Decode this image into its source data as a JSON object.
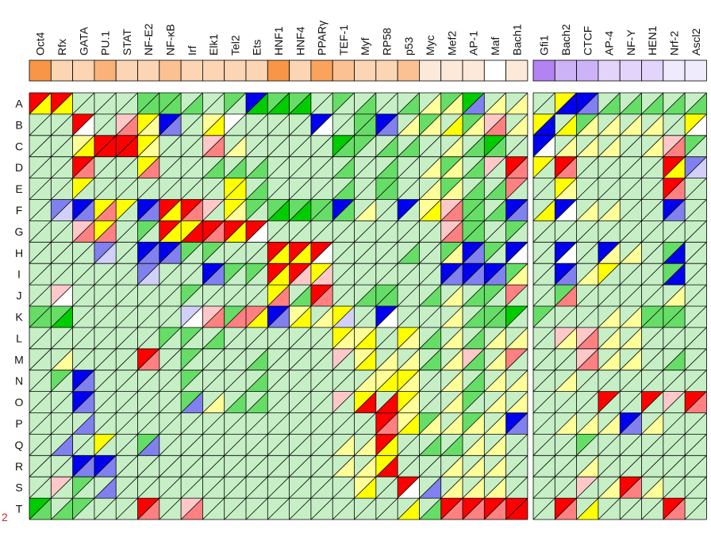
{
  "chart_data": {
    "type": "heatmap",
    "title": "",
    "xlabel": "",
    "ylabel": "",
    "panels": [
      {
        "columns": [
          "Oct4",
          "Rfx",
          "GATA",
          "PU.1",
          "STAT",
          "NF-E2",
          "NF-κB",
          "Irf",
          "Elk1",
          "Tel2",
          "Ets",
          "HNF1",
          "HNF4",
          "PPARγ",
          "TEF-1",
          "Myf",
          "RP58",
          "p53",
          "Myc",
          "Mef2",
          "AP-1",
          "Maf",
          "Bach1"
        ],
        "header_colors": [
          "#f79646",
          "#fcd5b4",
          "#fcd5b4",
          "#fab27a",
          "#fcd5b4",
          "#fcd5b4",
          "#fbc193",
          "#fcd5b4",
          "#fcd5b4",
          "#fcd5b4",
          "#fcd5b4",
          "#f79646",
          "#fcd5b4",
          "#f9a35c",
          "#fbc193",
          "#fcd5b4",
          "#fcd5b4",
          "#fbc193",
          "#fde9d9",
          "#fde9d9",
          "#fde9d9",
          "#ffffff",
          "#fde9d9"
        ]
      },
      {
        "columns": [
          "Gfi1",
          "Bach2",
          "CTCF",
          "AP-4",
          "NF-Y",
          "HEN1",
          "Nrf-2",
          "Ascl2"
        ],
        "header_colors": [
          "#b383f2",
          "#ccb3f7",
          "#ccb3f7",
          "#e2d4fb",
          "#e2d4fb",
          "#e2d4fb",
          "#f0eafd",
          "#f0eafd"
        ]
      }
    ],
    "rows": [
      "A",
      "B",
      "C",
      "D",
      "E",
      "F",
      "G",
      "H",
      "I",
      "J",
      "K",
      "L",
      "M",
      "N",
      "O",
      "P",
      "Q",
      "R",
      "S",
      "T"
    ],
    "stray_label": "2",
    "cell_encoding": "Each cell is split diagonally into an upper-left and lower-right triangle; each triangle takes a category color code.",
    "color_codes": {
      "w": "#ffffff",
      "r": "#ff0000",
      "o": "#ff8080",
      "p": "#ffc8c8",
      "y": "#ffff00",
      "l": "#ffff99",
      "g": "#00cc00",
      "m": "#66dd66",
      "n": "#c6efc6",
      "b": "#0000ee",
      "s": "#8080ee",
      "t": "#d0d0f8"
    },
    "cells": [
      [
        "ry ry nn nn nn mm mm nm nn mn bg mg mg nn mn nm nn nm nl ml gs nl nl",
        "nn yb bs nm nm nm nm nm"
      ],
      [
        "nn nn rw nn po yl bs nn ly wn nn nn nn bw nn mm bs nl ml ny ml po nl",
        "yb ny ml nl nl nl nn yw"
      ],
      [
        "nn nn ly rr rr yl nn nn po nl nn nn nn nn gm mn nm nm nn nl nm gm nn",
        "bw nl nl nl nn nl po mn"
      ],
      [
        "nn nn ro nn nn yo nn nn nm nm nm nn nn nn nm nn nm nn nl ml nm pn ro",
        "yn ro nn nn nn nn ry st"
      ],
      [
        "nn nn yn nn nn nn nn nn nn yy nm nn nn nn nm nn mm nn nl ml nm nm on",
        "nn yl nn nn nn nn ro nn"
      ],
      [
        "nn st bs yo yn bs ry ro pn yl mn mg mg mm bm nl nn bn ly po mm nm bs",
        "ny bw nl nl nn nn bs nn"
      ],
      [
        "nn nn po yo nn mn ry yr ro ry rw nn nn nn nn nn nn nn nn po mm nn mn",
        "nn nn nn nn nn nn nn nn"
      ],
      [
        "nn nn nn st nn bs bs mn mn nn nn ry ry rw nn nn nn nm nn ml bs mn bw",
        "nn bw nn bl nl nn mb nn"
      ],
      [
        "nn nn nn nn nn st nn nn bs mn mn ry rp yp nn nn nn nn nn bs bs bs ml",
        "nn bs nl yn nn nn mb nn"
      ],
      [
        "nn pw nn nn nn nn nn mn nn nn nn yo nm ro nn nm mm nn nm nl nm mn on",
        "nn mo nn nn nn nn nl nn"
      ],
      [
        "mm mg nn nn nn nn nn tw po mo oy bs ly nl yt nn bw nn nn nl nm mm gn",
        "mn nn nn nl nl mm mm nn"
      ],
      [
        "nn nn nn nn nn nn mn mn nm nn nn nn nn nn yl ly nn yl nm nl nm nl nl",
        "nn pl po nl nl nn nn nn"
      ],
      [
        "nn nl nn nn nn ro nn mn nn nn nm nn nn nn pn ly nl nl nm nl pm nl on",
        "nn nn po nl nl nn nm nn"
      ],
      [
        "nn mn bs nn nn nn nn mn nn nn nm nn nn nn nn nl ly yl nn nl nm nl nl",
        "nn nl nn nn nn nn nn nn"
      ],
      [
        "nn nn bs nn nn nn nn ms nl nm nm nn nn nn pn yr nr yl nn nl mn nl nl",
        "nn nn nn rn nn rn pn ro"
      ],
      [
        "nn nn ns nn nn nn nn nn nn nn nn nn nn nn nn nn ro ly ml nl ml nl bs",
        "nn nl nl nl bs nl nn nn"
      ],
      [
        "nn ns nn yn nn ms nn nn nn nn nn nn nn nn nl nl ry nn nm nm nl nl nn",
        "nn nn mn nn nn nn nn nn"
      ],
      [
        "nn nn bs bs nn nn nn nn nn nn nn nn nn nn nl nl yr nn nn nl nl nl nn",
        "nn nn nl nn nn nn nn nn"
      ],
      [
        "nn pn mn ns nn nn nn nn nn nn nn nn nn nn nn ly nn rw ns nl nl nl nn",
        "nn nn pn nl ro nl nn nn"
      ],
      [
        "gm nm mn nn nn ro nn po nn nn nn nn nn nn nn nn nn ny nm ro ro ro rr",
        "nn ro ny nn nn nn ro nn"
      ]
    ]
  }
}
